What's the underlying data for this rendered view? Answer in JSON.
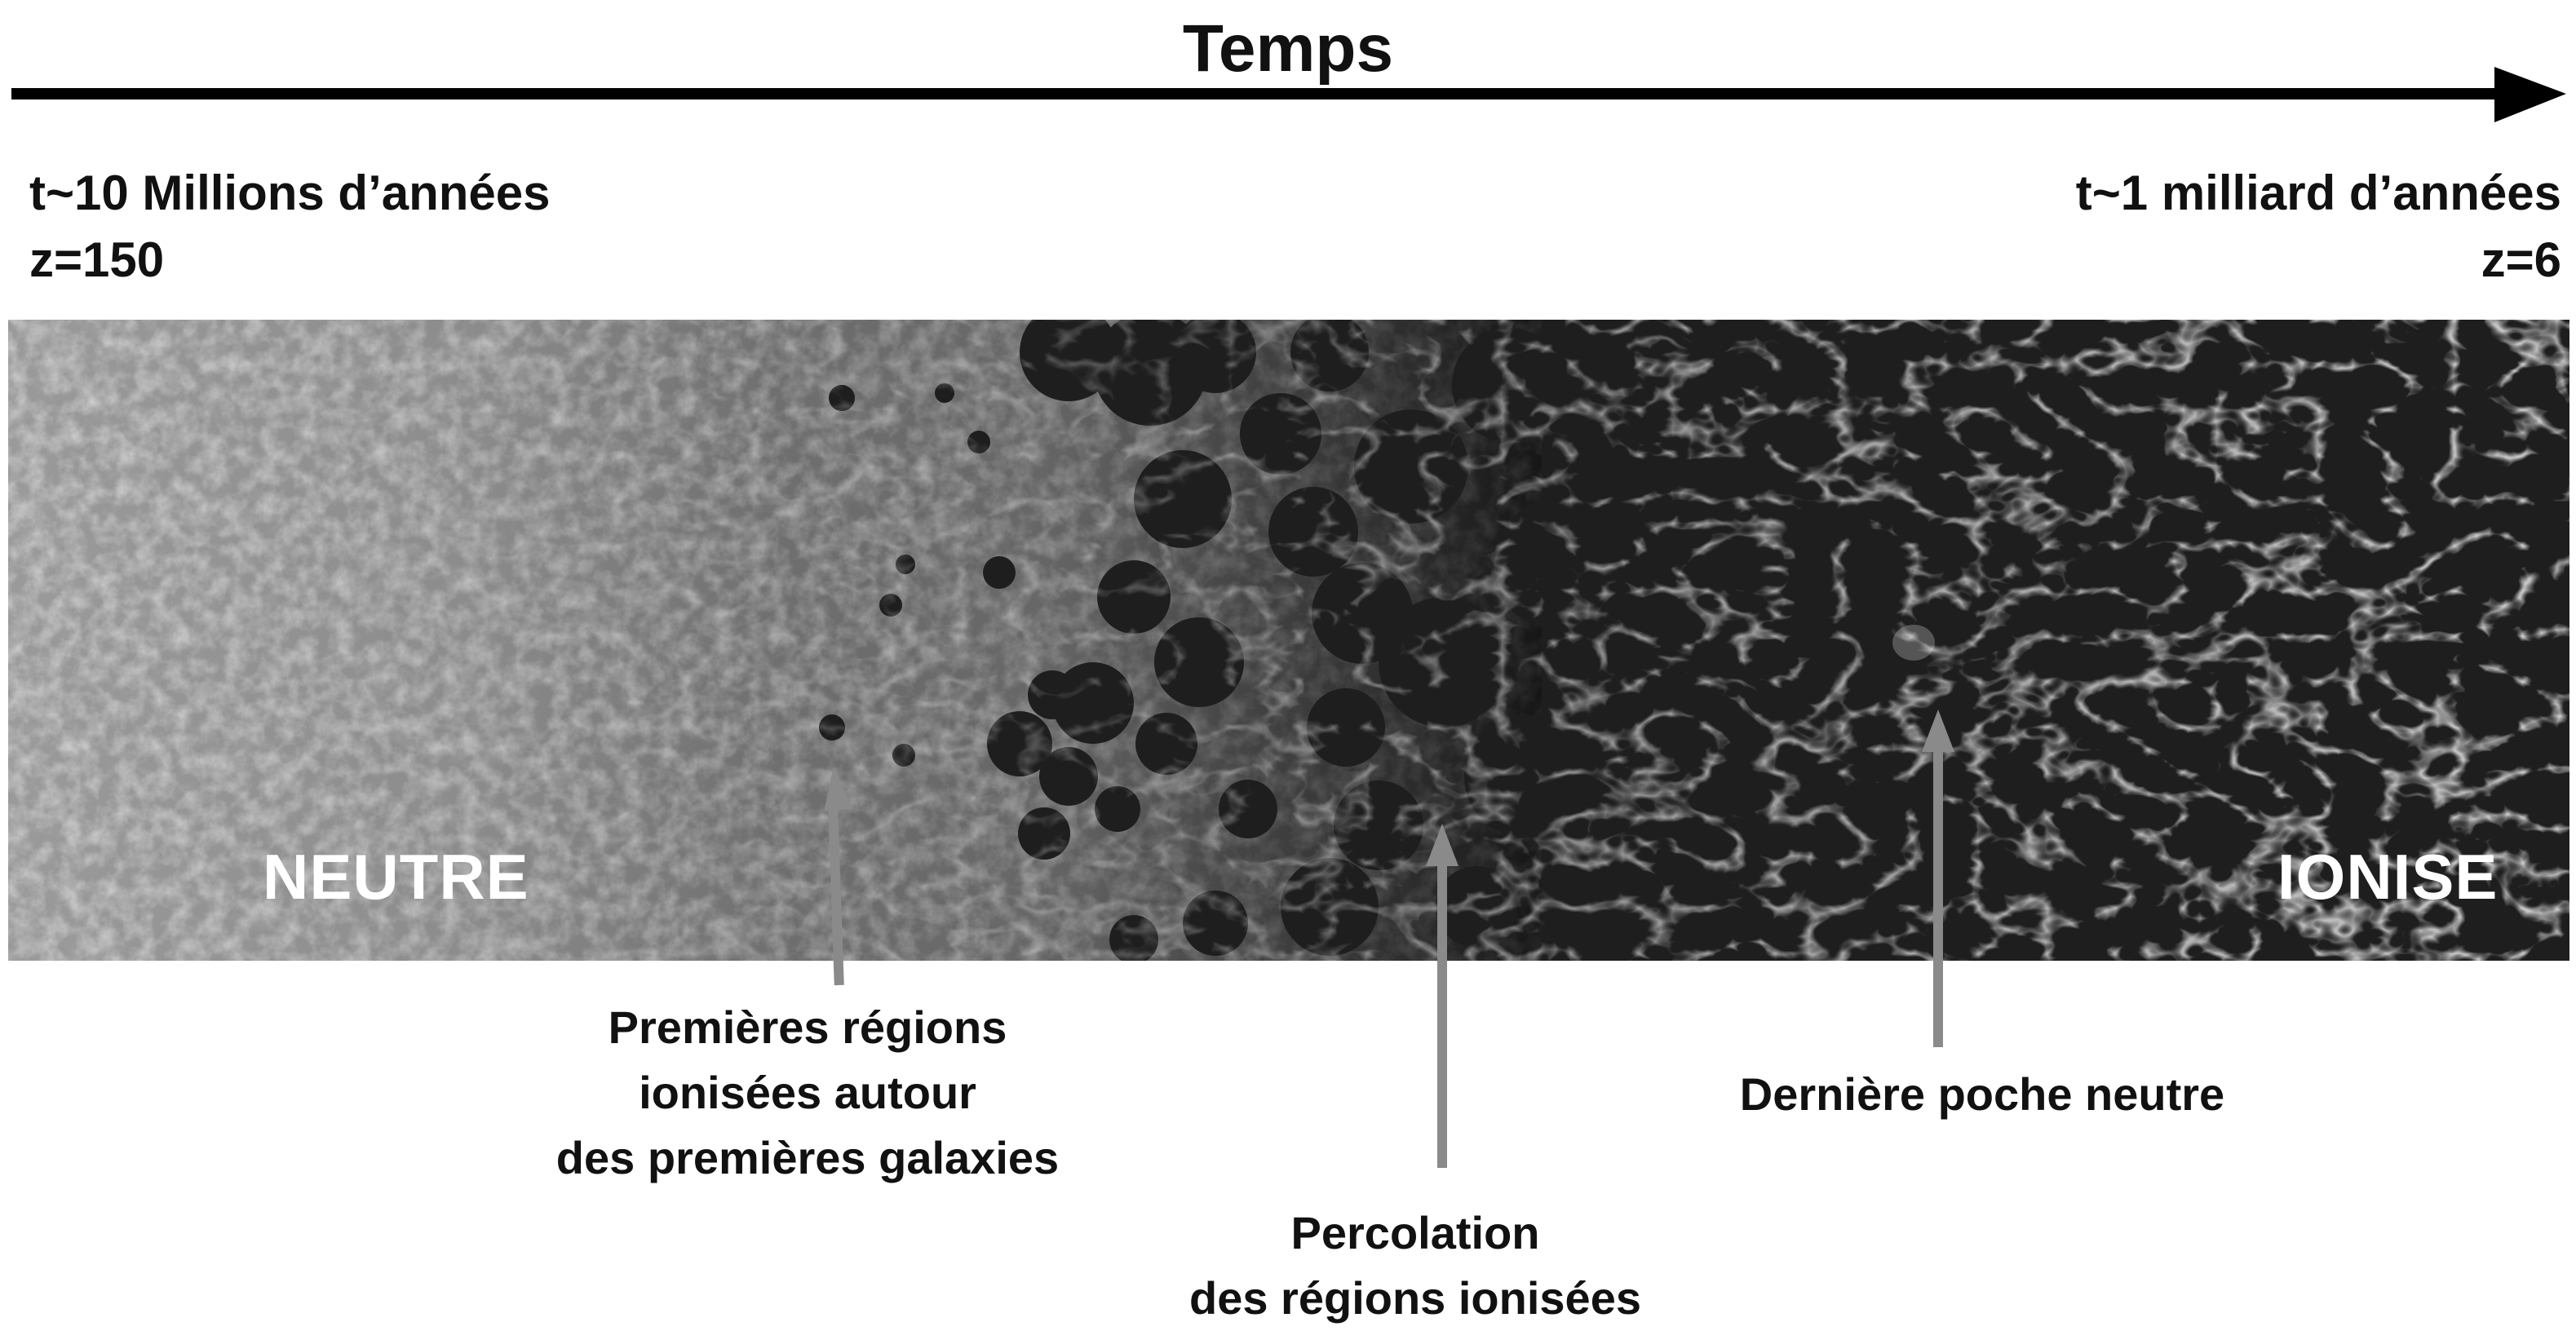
{
  "axis": {
    "title": "Temps",
    "start": {
      "time": "t~10 Millions d’années",
      "redshift": "z=150"
    },
    "end": {
      "time": "t~1 milliard d’années",
      "redshift": "z=6"
    }
  },
  "strip": {
    "neutral_label": "NEUTRE",
    "ionised_label": "IONISE"
  },
  "annotations": {
    "first_regions": [
      "Premières régions",
      "ionisées autour",
      "des premières galaxies"
    ],
    "percolation": [
      "Percolation",
      "des régions ionisées"
    ],
    "last_pocket": [
      "Dernière poche neutre"
    ]
  },
  "colors": {
    "arrow": "#000000",
    "pointer": "#8a8a8a",
    "neutral_tone": "#9c9c9c",
    "ionised_tone": "#1c1c1c",
    "filament": "#e6e6e6"
  }
}
